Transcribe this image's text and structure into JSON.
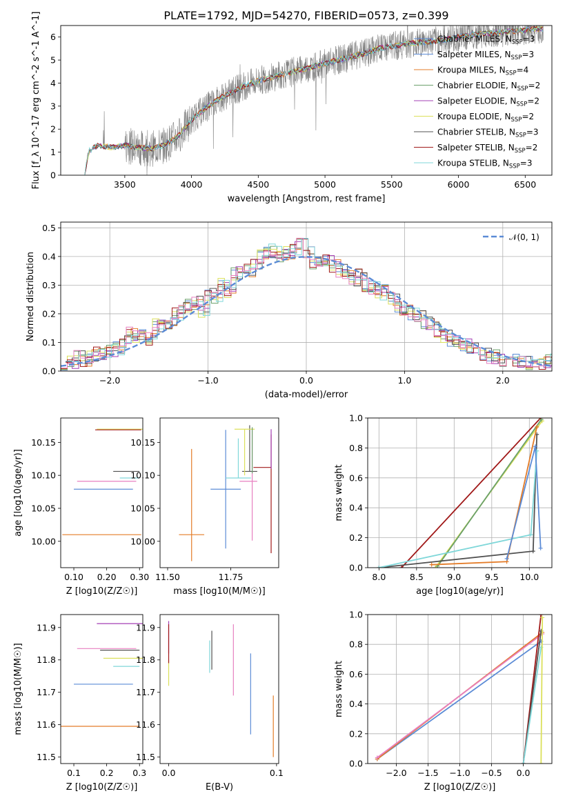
{
  "figure": {
    "title": "PLATE=1792, MJD=54270, FIBERID=0573, z=0.399"
  },
  "colors": {
    "observed": "#808080",
    "Chabrier MILES": "#5b8bd6",
    "Salpeter MILES": "#5b8bd6",
    "Kroupa MILES": "#e37b27",
    "Chabrier ELODIE": "#6aa06a",
    "Salpeter ELODIE": "#a33fb4",
    "Kroupa ELODIE": "#dbe05a",
    "Chabrier STELIB": "#505050",
    "Salpeter STELIB": "#a01818",
    "Kroupa STELIB": "#7fd7d9",
    "normal": "#5b8bd6",
    "pink": "#e77fc0"
  },
  "chart_data": [
    {
      "type": "line",
      "title": "PLATE=1792, MJD=54270, FIBERID=0573, z=0.399",
      "xlabel": "wavelength [Angstrom, rest frame]",
      "ylabel": "Flux [f_λ 10^-17 erg cm^-2 s^-1 A^-1]",
      "xlim": [
        3020,
        6700
      ],
      "ylim": [
        0,
        6.5
      ],
      "xticks": [
        3500,
        4000,
        4500,
        5000,
        5500,
        6000,
        6500
      ],
      "yticks": [
        0,
        1,
        2,
        3,
        4,
        5,
        6
      ],
      "legend_position": "top-right",
      "continuum": {
        "x": [
          3200,
          3230,
          3300,
          3400,
          3500,
          3600,
          3700,
          3800,
          3900,
          4000,
          4100,
          4200,
          4300,
          4400,
          4500,
          4600,
          4700,
          4800,
          4900,
          5000,
          5100,
          5200,
          5300,
          5400,
          5500,
          5600,
          5700,
          5800,
          5900,
          6000,
          6100,
          6200,
          6300,
          6400,
          6500,
          6600
        ],
        "y": [
          0,
          1.05,
          1.3,
          1.2,
          1.3,
          1.2,
          1.15,
          1.3,
          1.7,
          2.4,
          2.9,
          3.3,
          3.6,
          3.9,
          4.1,
          4.25,
          4.4,
          4.55,
          4.7,
          4.85,
          5.0,
          5.15,
          5.3,
          5.5,
          5.6,
          5.7,
          5.75,
          5.8,
          5.9,
          6.0,
          6.1,
          6.15,
          6.2,
          6.25,
          6.3,
          6.35
        ]
      },
      "series": [
        {
          "name": "Chabrier MILES, N_SSP=3"
        },
        {
          "name": "Salpeter MILES, N_SSP=3"
        },
        {
          "name": "Kroupa MILES, N_SSP=4"
        },
        {
          "name": "Chabrier ELODIE, N_SSP=2"
        },
        {
          "name": "Salpeter ELODIE, N_SSP=2"
        },
        {
          "name": "Kroupa ELODIE, N_SSP=2"
        },
        {
          "name": "Chabrier STELIB, N_SSP=3"
        },
        {
          "name": "Salpeter STELIB, N_SSP=2"
        },
        {
          "name": "Kroupa STELIB, N_SSP=3"
        }
      ]
    },
    {
      "type": "line",
      "xlabel": "(data-model)/error",
      "ylabel": "Normed distribution",
      "xlim": [
        -2.5,
        2.5
      ],
      "ylim": [
        0,
        0.52
      ],
      "xticks": [
        -2,
        -1,
        0,
        1,
        2
      ],
      "yticks": [
        0.0,
        0.1,
        0.2,
        0.3,
        0.4,
        0.5
      ],
      "grid": true,
      "legend_position": "top-right",
      "reference": {
        "name": "𝒩(0, 1)",
        "mean": 0,
        "sigma": 1
      },
      "bin_width": 0.1,
      "histogram_envelope": [
        0.02,
        0.03,
        0.05,
        0.04,
        0.05,
        0.06,
        0.06,
        0.07,
        0.08,
        0.1,
        0.13,
        0.12,
        0.13,
        0.11,
        0.16,
        0.18,
        0.17,
        0.2,
        0.22,
        0.23,
        0.24,
        0.21,
        0.27,
        0.26,
        0.3,
        0.28,
        0.34,
        0.33,
        0.35,
        0.38,
        0.4,
        0.42,
        0.42,
        0.4,
        0.41,
        0.43,
        0.44,
        0.42,
        0.38,
        0.37,
        0.39,
        0.37,
        0.35,
        0.33,
        0.32,
        0.34,
        0.3,
        0.29,
        0.27,
        0.28,
        0.25,
        0.22,
        0.21,
        0.2,
        0.19,
        0.17,
        0.16,
        0.14,
        0.12,
        0.11,
        0.1,
        0.09,
        0.08,
        0.07,
        0.06,
        0.05,
        0.05,
        0.04,
        0.04,
        0.035,
        0.03,
        0.03,
        0.025,
        0.03,
        0.04
      ]
    },
    {
      "type": "scatter",
      "xlabel": "Z [log10(Z/Z☉)]",
      "ylabel": "age [log10(age/yr)]",
      "xlim": [
        0.06,
        0.31
      ],
      "ylim": [
        9.96,
        10.187
      ],
      "xticks": [
        0.1,
        0.2,
        0.3
      ],
      "yticks": [
        10.0,
        10.05,
        10.1,
        10.15
      ],
      "points": [
        {
          "series": "Kroupa MILES",
          "x": 0.185,
          "y": 10.01,
          "xerr": [
            0.12,
            0.12
          ],
          "yerr": [
            0,
            0
          ]
        },
        {
          "series": "Chabrier MILES",
          "x": 0.19,
          "y": 10.079,
          "xerr": [
            0.09,
            0.09
          ],
          "yerr": [
            0,
            0
          ]
        },
        {
          "series": "Kroupa STELIB",
          "x": 0.26,
          "y": 10.096,
          "xerr": [
            0.02,
            0.04
          ],
          "yerr": [
            0,
            0
          ]
        },
        {
          "series": "Chabrier STELIB",
          "x": 0.26,
          "y": 10.106,
          "xerr": [
            0.04,
            0.04
          ],
          "yerr": [
            0,
            0
          ]
        },
        {
          "series": "pink",
          "x": 0.2,
          "y": 10.091,
          "xerr": [
            0.09,
            0.09
          ],
          "yerr": [
            0,
            0
          ]
        },
        {
          "series": "Kroupa ELODIE",
          "x": 0.24,
          "y": 10.17,
          "xerr": [
            0.07,
            0.07
          ],
          "yerr": [
            0,
            0
          ]
        },
        {
          "series": "Salpeter STELIB",
          "x": 0.235,
          "y": 10.169,
          "xerr": [
            0.07,
            0.07
          ],
          "yerr": [
            0,
            0
          ]
        }
      ]
    },
    {
      "type": "scatter",
      "xlabel": "mass [log10(M/M☉)]",
      "ylabel": "",
      "xlim": [
        11.47,
        11.94
      ],
      "ylim": [
        9.96,
        10.187
      ],
      "xticks": [
        11.5,
        11.75
      ],
      "yticks": [
        10.0,
        10.05,
        10.1,
        10.15
      ],
      "points": [
        {
          "series": "Kroupa MILES",
          "x": 11.595,
          "y": 10.01,
          "xerr": [
            0.05,
            0.05
          ],
          "yerr": [
            0.04,
            0.13
          ]
        },
        {
          "series": "Chabrier MILES",
          "x": 11.73,
          "y": 10.079,
          "xerr": [
            0.06,
            0.06
          ],
          "yerr": [
            0.09,
            0.09
          ]
        },
        {
          "series": "pink",
          "x": 11.835,
          "y": 10.091,
          "xerr": [
            0.05,
            0.02
          ],
          "yerr": [
            0.09,
            0.08
          ]
        },
        {
          "series": "Kroupa STELIB",
          "x": 11.78,
          "y": 10.096,
          "xerr": [
            0.05,
            0.05
          ],
          "yerr": [
            0,
            0.06
          ]
        },
        {
          "series": "Chabrier STELIB",
          "x": 11.825,
          "y": 10.106,
          "xerr": [
            0.03,
            0.03
          ],
          "yerr": [
            0,
            0.07
          ]
        },
        {
          "series": "Salpeter STELIB",
          "x": 11.91,
          "y": 10.112,
          "xerr": [
            0.07,
            0.0
          ],
          "yerr": [
            0.13,
            0.05
          ]
        },
        {
          "series": "Kroupa ELODIE",
          "x": 11.805,
          "y": 10.17,
          "xerr": [
            0.04,
            0.04
          ],
          "yerr": [
            0.07,
            0
          ]
        },
        {
          "series": "Salpeter ELODIE",
          "x": 11.91,
          "y": 10.17,
          "xerr": [
            0.0,
            0.0
          ],
          "yerr": [
            0.06,
            0
          ]
        },
        {
          "series": "Chabrier ELODIE",
          "x": 11.835,
          "y": 10.173,
          "xerr": [
            0.0,
            0.0
          ],
          "yerr": [
            0.07,
            0
          ]
        }
      ]
    },
    {
      "type": "line",
      "xlabel": "age [log10(age/yr)]",
      "ylabel": "mass weight",
      "xlim": [
        7.85,
        10.3
      ],
      "ylim": [
        0,
        1.0
      ],
      "xticks": [
        8.0,
        8.5,
        9.0,
        9.5,
        10.0
      ],
      "yticks": [
        0.0,
        0.2,
        0.4,
        0.6,
        0.8,
        1.0
      ],
      "grid": true,
      "series": [
        {
          "name": "Salpeter STELIB",
          "x": [
            8.3,
            10.15
          ],
          "y": [
            0.0,
            1.0
          ]
        },
        {
          "name": "Kroupa ELODIE",
          "x": [
            8.75,
            10.17
          ],
          "y": [
            0.0,
            0.98
          ]
        },
        {
          "name": "Chabrier ELODIE",
          "x": [
            8.78,
            10.16
          ],
          "y": [
            0.01,
            0.99
          ]
        },
        {
          "name": "Chabrier STELIB",
          "x": [
            8.0,
            10.05,
            10.1
          ],
          "y": [
            0.0,
            0.11,
            0.89
          ]
        },
        {
          "name": "Kroupa STELIB",
          "x": [
            8.0,
            10.02,
            10.1
          ],
          "y": [
            0.0,
            0.22,
            0.78
          ]
        },
        {
          "name": "Kroupa MILES",
          "x": [
            8.7,
            9.7,
            10.1
          ],
          "y": [
            0.02,
            0.04,
            0.94
          ]
        },
        {
          "name": "Chabrier MILES",
          "x": [
            9.7,
            10.08,
            10.15
          ],
          "y": [
            0.06,
            0.81,
            0.13
          ]
        }
      ]
    },
    {
      "type": "scatter",
      "xlabel": "Z [log10(Z/Z☉)]",
      "ylabel": "mass [log10(M/M☉)]",
      "xlim": [
        0.06,
        0.31
      ],
      "ylim": [
        11.48,
        11.94
      ],
      "xticks": [
        0.1,
        0.2,
        0.3
      ],
      "yticks": [
        11.5,
        11.6,
        11.7,
        11.8,
        11.9
      ],
      "points": [
        {
          "series": "Kroupa MILES",
          "x": 0.18,
          "y": 11.595,
          "xerr": [
            0.12,
            0.12
          ],
          "yerr": [
            0,
            0
          ]
        },
        {
          "series": "Chabrier MILES",
          "x": 0.19,
          "y": 11.725,
          "xerr": [
            0.09,
            0.09
          ],
          "yerr": [
            0,
            0
          ]
        },
        {
          "series": "Kroupa STELIB",
          "x": 0.26,
          "y": 11.78,
          "xerr": [
            0.04,
            0.04
          ],
          "yerr": [
            0,
            0
          ]
        },
        {
          "series": "Kroupa ELODIE",
          "x": 0.25,
          "y": 11.805,
          "xerr": [
            0.06,
            0.06
          ],
          "yerr": [
            0,
            0
          ]
        },
        {
          "series": "Chabrier STELIB",
          "x": 0.26,
          "y": 11.83,
          "xerr": [
            0.08,
            0.04
          ],
          "yerr": [
            0,
            0
          ]
        },
        {
          "series": "pink",
          "x": 0.2,
          "y": 11.835,
          "xerr": [
            0.09,
            0.09
          ],
          "yerr": [
            0,
            0
          ]
        },
        {
          "series": "Salpeter ELODIE",
          "x": 0.24,
          "y": 11.912,
          "xerr": [
            0.07,
            0.07
          ],
          "yerr": [
            0,
            0
          ]
        }
      ]
    },
    {
      "type": "scatter",
      "xlabel": "E(B-V)",
      "ylabel": "",
      "xlim": [
        -0.008,
        0.102
      ],
      "ylim": [
        11.48,
        11.94
      ],
      "xticks": [
        0.0,
        0.1
      ],
      "yticks": [
        11.5,
        11.6,
        11.7,
        11.8,
        11.9
      ],
      "points": [
        {
          "series": "Salpeter ELODIE",
          "x": 0.0,
          "y": 11.87,
          "xerr": [
            0,
            0
          ],
          "yerr": [
            0.05,
            0.05
          ]
        },
        {
          "series": "Kroupa ELODIE",
          "x": 0.0,
          "y": 11.76,
          "xerr": [
            0,
            0
          ],
          "yerr": [
            0.04,
            0.04
          ]
        },
        {
          "series": "Salpeter STELIB",
          "x": 0.0,
          "y": 11.87,
          "xerr": [
            0,
            0
          ],
          "yerr": [
            0.08,
            0.04
          ]
        },
        {
          "series": "Kroupa STELIB",
          "x": 0.038,
          "y": 11.81,
          "xerr": [
            0,
            0
          ],
          "yerr": [
            0.05,
            0.05
          ]
        },
        {
          "series": "Chabrier STELIB",
          "x": 0.04,
          "y": 11.83,
          "xerr": [
            0,
            0
          ],
          "yerr": [
            0.06,
            0.06
          ]
        },
        {
          "series": "pink",
          "x": 0.06,
          "y": 11.8,
          "xerr": [
            0,
            0
          ],
          "yerr": [
            0.11,
            0.11
          ]
        },
        {
          "series": "Chabrier MILES",
          "x": 0.076,
          "y": 11.69,
          "xerr": [
            0,
            0
          ],
          "yerr": [
            0.12,
            0.13
          ]
        },
        {
          "series": "Kroupa MILES",
          "x": 0.097,
          "y": 11.6,
          "xerr": [
            0,
            0
          ],
          "yerr": [
            0.1,
            0.09
          ]
        }
      ]
    },
    {
      "type": "line",
      "xlabel": "Z [log10(Z/Z☉)]",
      "ylabel": "mass weight",
      "xlim": [
        -2.45,
        0.45
      ],
      "ylim": [
        0,
        1.0
      ],
      "xticks": [
        -2.0,
        -1.5,
        -1.0,
        -0.5,
        0.0
      ],
      "yticks": [
        0.0,
        0.2,
        0.4,
        0.6,
        0.8,
        1.0
      ],
      "grid": true,
      "series": [
        {
          "name": "Chabrier MILES",
          "x": [
            -2.3,
            0.28
          ],
          "y": [
            0.03,
            0.82
          ]
        },
        {
          "name": "Kroupa MILES",
          "x": [
            -2.3,
            0.3
          ],
          "y": [
            0.03,
            0.88
          ]
        },
        {
          "name": "pink",
          "x": [
            -2.3,
            0.3
          ],
          "y": [
            0.04,
            0.87
          ]
        },
        {
          "name": "Salpeter STELIB",
          "x": [
            0.0,
            0.28
          ],
          "y": [
            0.0,
            1.0
          ]
        },
        {
          "name": "Chabrier STELIB",
          "x": [
            0.0,
            0.28
          ],
          "y": [
            0.0,
            0.89
          ]
        },
        {
          "name": "Kroupa STELIB",
          "x": [
            0.0,
            0.28
          ],
          "y": [
            0.0,
            0.78
          ]
        },
        {
          "name": "Kroupa ELODIE",
          "x": [
            0.28,
            0.3
          ],
          "y": [
            0.0,
            0.98
          ]
        }
      ]
    }
  ]
}
